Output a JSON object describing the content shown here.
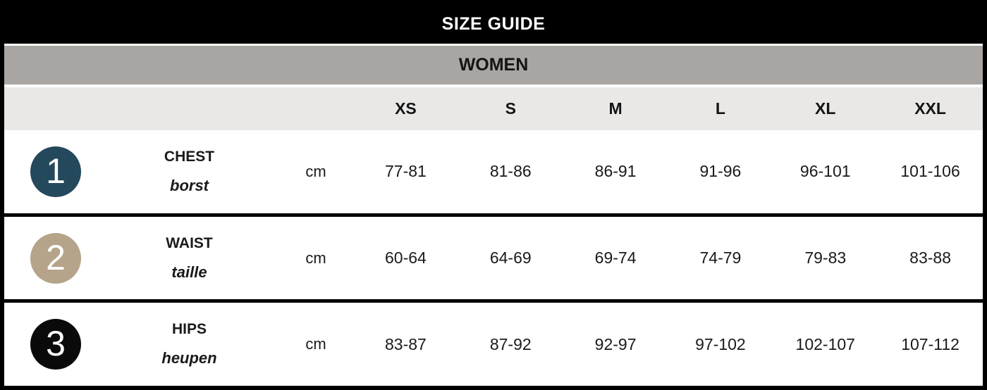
{
  "header": {
    "title": "SIZE GUIDE",
    "category": "WOMEN"
  },
  "columns": {
    "sizes": [
      "XS",
      "S",
      "M",
      "L",
      "XL",
      "XXL"
    ]
  },
  "measurements": [
    {
      "number": "1",
      "label": "CHEST",
      "translation": "borst",
      "unit": "cm",
      "circle_color": "#24485c",
      "values": [
        "77-81",
        "81-86",
        "86-91",
        "91-96",
        "96-101",
        "101-106"
      ]
    },
    {
      "number": "2",
      "label": "WAIST",
      "translation": "taille",
      "unit": "cm",
      "circle_color": "#b5a489",
      "values": [
        "60-64",
        "64-69",
        "69-74",
        "74-79",
        "79-83",
        "83-88"
      ]
    },
    {
      "number": "3",
      "label": "HIPS",
      "translation": "heupen",
      "unit": "cm",
      "circle_color": "#0a0a0a",
      "values": [
        "83-87",
        "87-92",
        "92-97",
        "97-102",
        "102-107",
        "107-112"
      ]
    }
  ],
  "colors": {
    "title_bg": "#000000",
    "title_text": "#ffffff",
    "category_bg": "#a8a5a2",
    "sizes_bg": "#e9e8e6",
    "row_bg": "#ffffff",
    "border": "#000000",
    "circle_chest": "#24485c",
    "circle_waist": "#b5a489",
    "circle_hips": "#0a0a0a"
  }
}
